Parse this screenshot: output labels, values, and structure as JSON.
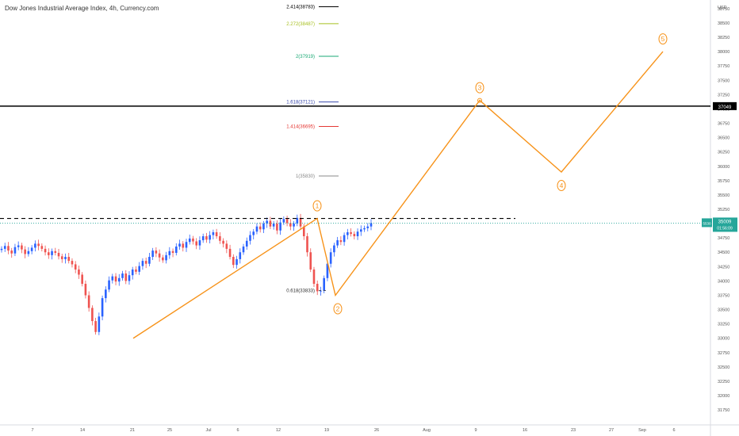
{
  "title": "Dow Jones Industrial Average Index, 4h, Currency.com",
  "colors": {
    "up": "#2962ff",
    "down": "#ef5350",
    "wave": "#f7931a",
    "grid": "#f0f3fa",
    "axis_text": "#555555",
    "last_price": "#26a69a",
    "resistance": "#000000"
  },
  "chart_data": {
    "type": "candlestick",
    "title": "Dow Jones Industrial Average Index, 4h, Currency.com",
    "y_unit": "USD",
    "ylim": [
      31600,
      38900
    ],
    "y_ticks": [
      38750,
      38500,
      38250,
      38000,
      37750,
      37500,
      37250,
      37000,
      36750,
      36500,
      36250,
      36000,
      35750,
      35500,
      35250,
      35000,
      34750,
      34500,
      34250,
      34000,
      33750,
      33500,
      33250,
      33000,
      32750,
      32500,
      32250,
      32000,
      31750
    ],
    "x_ticks": [
      "7",
      "14",
      "21",
      "25",
      "Jul",
      "6",
      "12",
      "19",
      "26",
      "Aug",
      "9",
      "16",
      "23",
      "27",
      "Sep",
      "6"
    ],
    "candles_close": [
      34560,
      34610,
      34530,
      34480,
      34590,
      34620,
      34550,
      34470,
      34520,
      34580,
      34650,
      34610,
      34560,
      34500,
      34450,
      34520,
      34490,
      34430,
      34380,
      34420,
      34350,
      34290,
      34200,
      34110,
      33950,
      33750,
      33530,
      33300,
      33110,
      33380,
      33700,
      33850,
      34010,
      34080,
      33990,
      34050,
      34130,
      34000,
      34100,
      34200,
      34160,
      34260,
      34350,
      34300,
      34420,
      34530,
      34480,
      34410,
      34360,
      34450,
      34520,
      34490,
      34600,
      34650,
      34580,
      34680,
      34740,
      34690,
      34620,
      34710,
      34780,
      34720,
      34800,
      34850,
      34780,
      34700,
      34650,
      34560,
      34420,
      34280,
      34380,
      34500,
      34600,
      34700,
      34800,
      34860,
      34950,
      34900,
      35000,
      35050,
      34950,
      35000,
      34880,
      35020,
      35080,
      35010,
      34950,
      35000,
      35100,
      34950,
      34780,
      34500,
      34200,
      33950,
      33820,
      33830,
      34050,
      34300,
      34500,
      34620,
      34710,
      34680,
      34800,
      34850,
      34820,
      34780,
      34860,
      34900,
      34920,
      34950,
      35009
    ],
    "fib_levels": [
      {
        "ratio": "2.414",
        "price": 38783,
        "label": "2.414(38783)",
        "color": "#000000"
      },
      {
        "ratio": "2.272",
        "price": 38487,
        "label": "2.272(38487)",
        "color": "#a8c021"
      },
      {
        "ratio": "2",
        "price": 37919,
        "label": "2(37919)",
        "color": "#19a974"
      },
      {
        "ratio": "1.618",
        "price": 37121,
        "label": "1.618(37121)",
        "color": "#3949ab"
      },
      {
        "ratio": "1.414",
        "price": 36695,
        "label": "1.414(36695)",
        "color": "#e53935"
      },
      {
        "ratio": "1",
        "price": 35830,
        "label": "1(35830)",
        "color": "#888888"
      },
      {
        "ratio": "0.618",
        "price": 33833,
        "label": "0.618(33833)",
        "color": "#333333"
      }
    ],
    "waves": [
      {
        "label": "1",
        "price": 35090
      },
      {
        "label": "2",
        "price": 33750
      },
      {
        "label": "3",
        "price": 37150
      },
      {
        "label": "4",
        "price": 35900
      },
      {
        "label": "5",
        "price": 38000
      }
    ],
    "wave_start_price": 33000,
    "resistance_line": 37049,
    "dashed_high": 35090,
    "last_price": 35009,
    "last_price_label": "35009",
    "last_price_tag": "5530",
    "countdown": "01:56:09"
  }
}
